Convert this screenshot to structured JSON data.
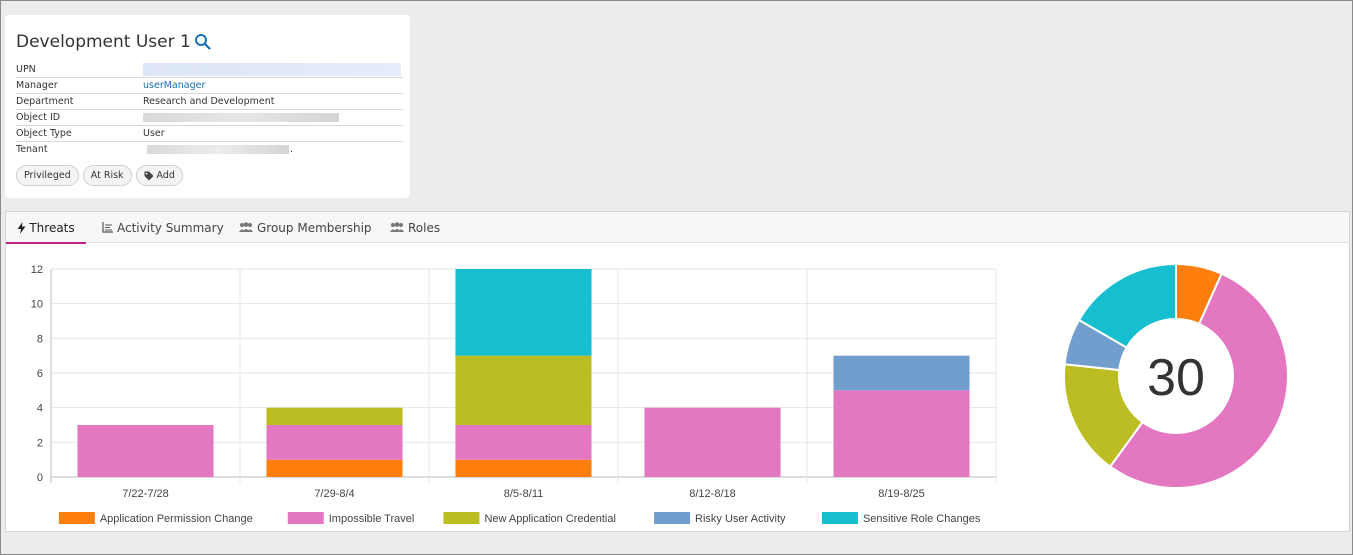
{
  "user": {
    "title": "Development User 1",
    "properties": [
      {
        "key": "UPN",
        "value": "",
        "redacted": "blue"
      },
      {
        "key": "Manager",
        "value": "userManager",
        "link": true
      },
      {
        "key": "Department",
        "value": "Research and Development"
      },
      {
        "key": "Object ID",
        "value": "",
        "redacted": "gray"
      },
      {
        "key": "Object Type",
        "value": "User"
      },
      {
        "key": "Tenant",
        "value": ".",
        "redacted": "gray"
      }
    ],
    "tags": [
      "Privileged",
      "At Risk",
      "Add"
    ]
  },
  "tabs": [
    {
      "label": "Threats",
      "icon": "bolt-icon",
      "active": true
    },
    {
      "label": "Activity Summary",
      "icon": "chart-icon"
    },
    {
      "label": "Group Membership",
      "icon": "group-icon"
    },
    {
      "label": "Roles",
      "icon": "roles-icon"
    }
  ],
  "chart_data": [
    {
      "type": "bar",
      "stacked": true,
      "categories": [
        "7/22-7/28",
        "7/29-8/4",
        "8/5-8/11",
        "8/12-8/18",
        "8/19-8/25"
      ],
      "ylim": [
        0,
        12
      ],
      "yticks": [
        0,
        2,
        4,
        6,
        8,
        10,
        12
      ],
      "grid": true,
      "legend_position": "bottom",
      "series": [
        {
          "name": "Application Permission Change",
          "color": "#ff7f0e",
          "values": [
            0,
            1,
            1,
            0,
            0
          ]
        },
        {
          "name": "Impossible Travel",
          "color": "#e377c2",
          "values": [
            3,
            2,
            2,
            4,
            5
          ]
        },
        {
          "name": "New Application Credential",
          "color": "#bcbd22",
          "values": [
            0,
            1,
            4,
            0,
            0
          ]
        },
        {
          "name": "Risky User Activity",
          "color": "#729ece",
          "values": [
            0,
            0,
            0,
            0,
            2
          ]
        },
        {
          "name": "Sensitive Role Changes",
          "color": "#17becf",
          "values": [
            0,
            0,
            5,
            0,
            0
          ]
        }
      ]
    },
    {
      "type": "pie",
      "donut": true,
      "total_label": "30",
      "slices": [
        {
          "name": "Application Permission Change",
          "value": 2,
          "color": "#ff7f0e"
        },
        {
          "name": "Impossible Travel",
          "value": 16,
          "color": "#e377c2"
        },
        {
          "name": "New Application Credential",
          "value": 5,
          "color": "#bcbd22"
        },
        {
          "name": "Risky User Activity",
          "value": 2,
          "color": "#729ece"
        },
        {
          "name": "Sensitive Role Changes",
          "value": 5,
          "color": "#17becf"
        }
      ]
    }
  ]
}
